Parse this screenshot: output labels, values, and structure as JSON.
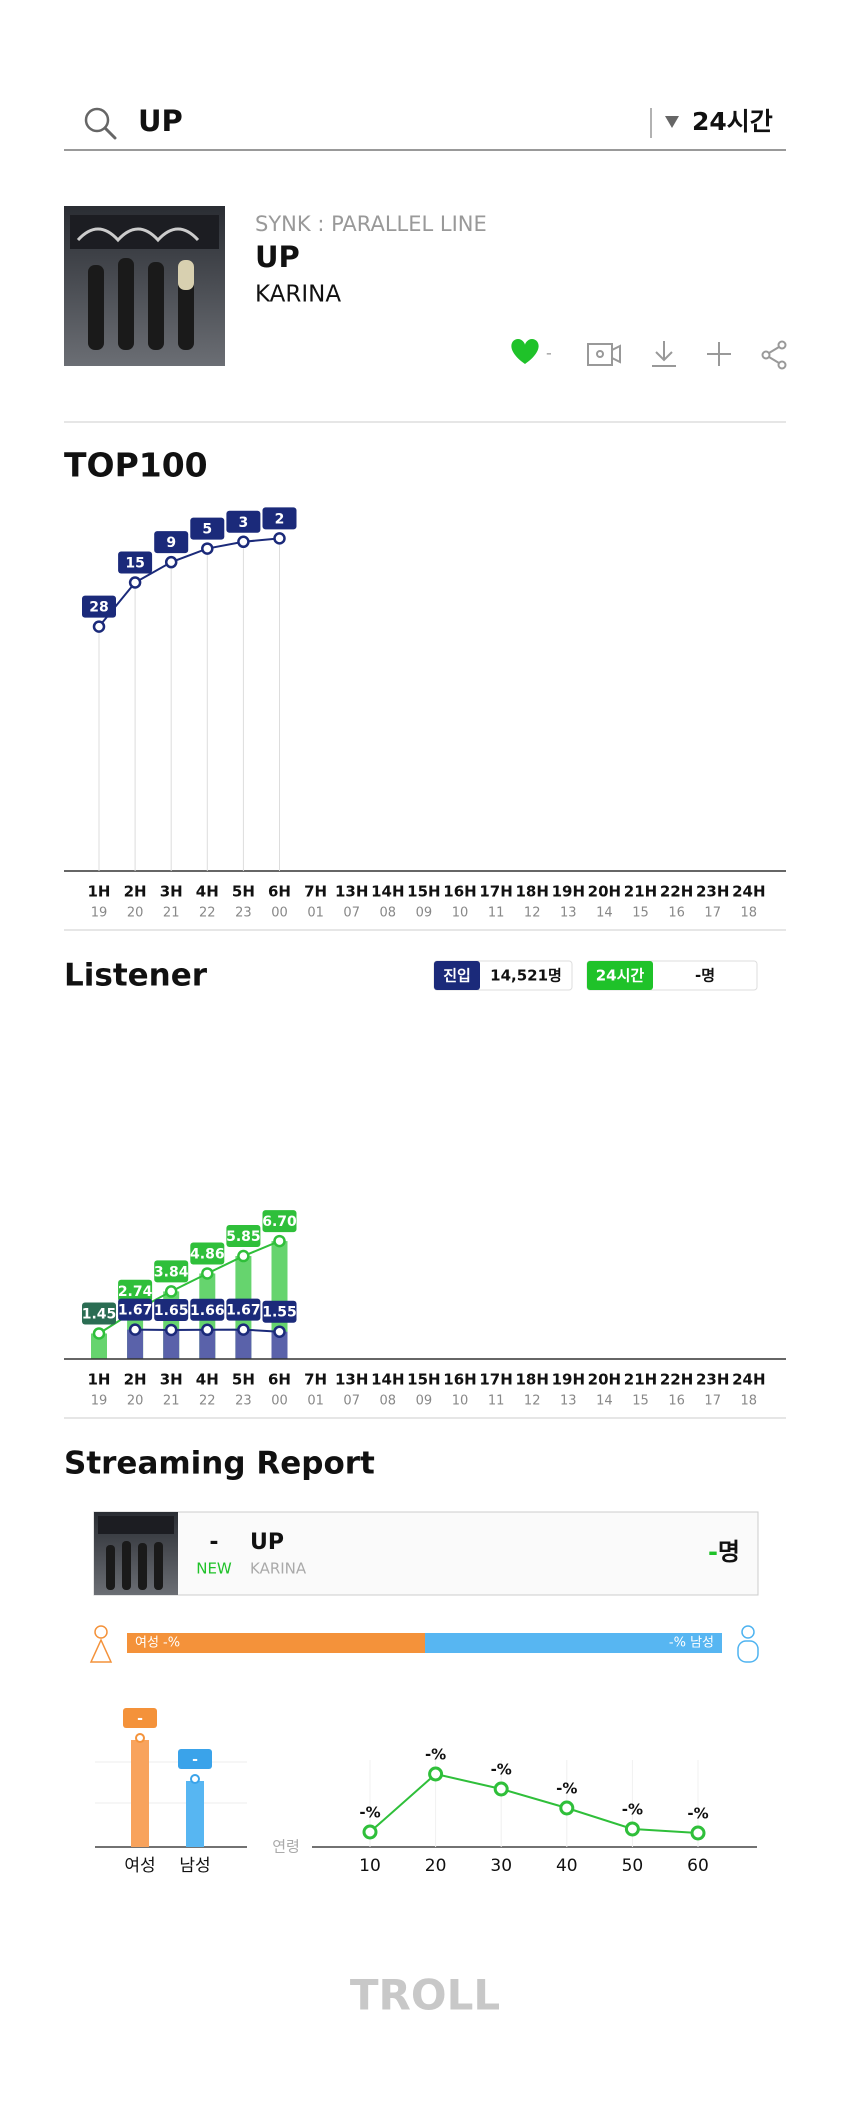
{
  "search": {
    "query": "UP",
    "period": "24시간"
  },
  "song": {
    "album": "SYNK : PARALLEL LINE",
    "title": "UP",
    "artist": "KARINA",
    "likes": "-"
  },
  "top100": {
    "type": "line",
    "title": "TOP100",
    "categories": [
      "1H",
      "2H",
      "3H",
      "4H",
      "5H",
      "6H",
      "7H",
      "13H",
      "14H",
      "15H",
      "16H",
      "17H",
      "18H",
      "19H",
      "20H",
      "21H",
      "22H",
      "23H",
      "24H"
    ],
    "times": [
      "19",
      "20",
      "21",
      "22",
      "23",
      "00",
      "01",
      "07",
      "08",
      "09",
      "10",
      "11",
      "12",
      "13",
      "14",
      "15",
      "16",
      "17",
      "18"
    ],
    "values": [
      28,
      15,
      9,
      5,
      3,
      2,
      null,
      null,
      null,
      null,
      null,
      null,
      null,
      null,
      null,
      null,
      null,
      null,
      null
    ],
    "ylim": [
      0,
      100
    ],
    "inverted": true,
    "color": "#1b2a7a"
  },
  "listener": {
    "type": "bar-line",
    "title": "Listener",
    "entry_label": "진입",
    "entry_value": "14,521명",
    "period_label": "24시간",
    "period_value": "-명",
    "categories": [
      "1H",
      "2H",
      "3H",
      "4H",
      "5H",
      "6H",
      "7H",
      "13H",
      "14H",
      "15H",
      "16H",
      "17H",
      "18H",
      "19H",
      "20H",
      "21H",
      "22H",
      "23H",
      "24H"
    ],
    "times": [
      "19",
      "20",
      "21",
      "22",
      "23",
      "00",
      "01",
      "07",
      "08",
      "09",
      "10",
      "11",
      "12",
      "13",
      "14",
      "15",
      "16",
      "17",
      "18"
    ],
    "ylim": [
      0,
      10
    ],
    "series": [
      {
        "color": "#2fbf3a",
        "bar_color": "#66d46e",
        "values": [
          1.45,
          2.74,
          3.84,
          4.86,
          5.85,
          6.7,
          null,
          null,
          null,
          null,
          null,
          null,
          null,
          null,
          null,
          null,
          null,
          null,
          null
        ],
        "value_labels": [
          "1.45",
          "2.74",
          "3.84",
          "4.86",
          "5.85",
          "6.70",
          null,
          null,
          null,
          null,
          null,
          null,
          null,
          null,
          null,
          null,
          null,
          null,
          null
        ]
      },
      {
        "color": "#1b2a7a",
        "bar_color": "#5a62aa",
        "values": [
          null,
          1.67,
          1.65,
          1.66,
          1.67,
          1.55,
          null,
          null,
          null,
          null,
          null,
          null,
          null,
          null,
          null,
          null,
          null,
          null,
          null
        ]
      }
    ]
  },
  "report": {
    "title": "Streaming Report",
    "rank": "-",
    "status": "NEW",
    "song": "UP",
    "artist": "KARINA",
    "listeners": "-",
    "listeners_unit": "명",
    "female_bar": "여성 -%",
    "male_bar": "-% 남성",
    "gender_labels": [
      "여성",
      "남성"
    ],
    "gender_values": [
      "-",
      "-"
    ],
    "age_axis": "연령",
    "ages": [
      10,
      20,
      30,
      40,
      50,
      60
    ],
    "age_values": [
      "-%",
      "-%",
      "-%",
      "-%",
      "-%",
      "-%"
    ]
  },
  "footer": "TROLL"
}
